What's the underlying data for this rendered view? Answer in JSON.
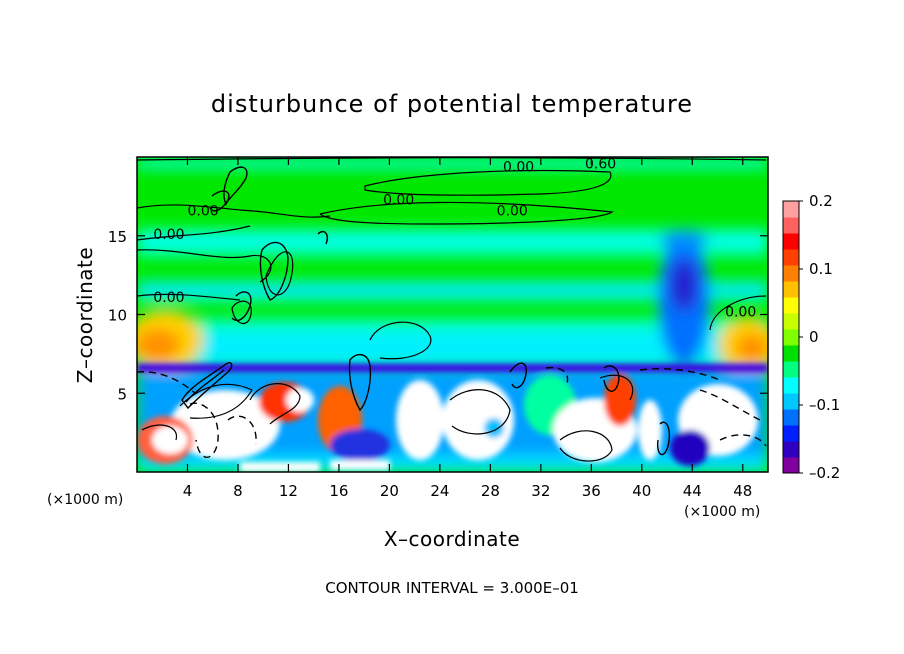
{
  "chart_data": {
    "type": "heatmap",
    "title": "disturbunce of potential temperature",
    "xlabel": "X–coordinate",
    "ylabel": "Z–coordinate",
    "x_unit": "(×1000 m)",
    "x_unit_right": "(×1000 m)",
    "xlim": [
      0,
      50
    ],
    "ylim": [
      0,
      20
    ],
    "x_ticks": [
      4,
      8,
      12,
      16,
      20,
      24,
      28,
      32,
      36,
      40,
      44,
      48
    ],
    "y_ticks": [
      5,
      10,
      15
    ],
    "colorbar": {
      "min": -0.2,
      "max": 0.2,
      "ticks": [
        0.2,
        0.1,
        0,
        -0.1,
        -0.2
      ],
      "tick_labels": [
        "0.2",
        "0.1",
        "0",
        "–0.1",
        "–0.2"
      ],
      "colors": [
        "#8000a0",
        "#3000c0",
        "#0020ff",
        "#0070ff",
        "#00c8ff",
        "#00ffff",
        "#00ff80",
        "#00e000",
        "#80ff00",
        "#c8ff00",
        "#ffff00",
        "#ffc000",
        "#ff8000",
        "#ff4000",
        "#ff0000",
        "#ff6060",
        "#ffa0a0"
      ]
    },
    "contour_labels": [
      {
        "text": "0.60",
        "x": 35.5,
        "y": 19.6
      },
      {
        "text": "0.00",
        "x": 29,
        "y": 19.4
      },
      {
        "text": "0.00",
        "x": 4,
        "y": 16.6
      },
      {
        "text": "0.00",
        "x": 19.5,
        "y": 17.3
      },
      {
        "text": "0.00",
        "x": 28.5,
        "y": 16.6
      },
      {
        "text": "0.00",
        "x": 1.3,
        "y": 15.1
      },
      {
        "text": "0.00",
        "x": 1.3,
        "y": 11.1
      },
      {
        "text": "0.00",
        "x": 46.6,
        "y": 10.2
      }
    ],
    "contour_interval_text": "CONTOUR INTERVAL = 3.000E–01"
  }
}
